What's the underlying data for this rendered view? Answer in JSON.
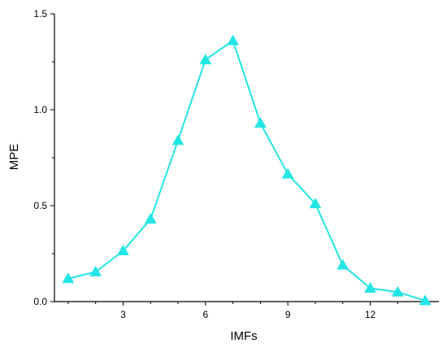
{
  "chart_data": {
    "type": "line",
    "xlabel": "IMFs",
    "ylabel": "MPE",
    "xlim": [
      0.5,
      14.5
    ],
    "ylim": [
      0.0,
      1.5
    ],
    "xticks": [
      3,
      6,
      9,
      12
    ],
    "xtick_labels": [
      "3",
      "6",
      "9",
      "12"
    ],
    "yticks": [
      0.0,
      0.5,
      1.0,
      1.5
    ],
    "ytick_labels": [
      "0.0",
      "0.5",
      "1.0",
      "1.5"
    ],
    "grid": false,
    "series": [
      {
        "marker": "triangle",
        "color": "#22e5e5",
        "x": [
          1,
          2,
          3,
          4,
          5,
          6,
          7,
          8,
          9,
          10,
          11,
          12,
          13,
          14
        ],
        "y": [
          0.12,
          0.155,
          0.265,
          0.43,
          0.84,
          1.26,
          1.36,
          0.93,
          0.665,
          0.51,
          0.19,
          0.07,
          0.05,
          0.005
        ]
      }
    ]
  }
}
